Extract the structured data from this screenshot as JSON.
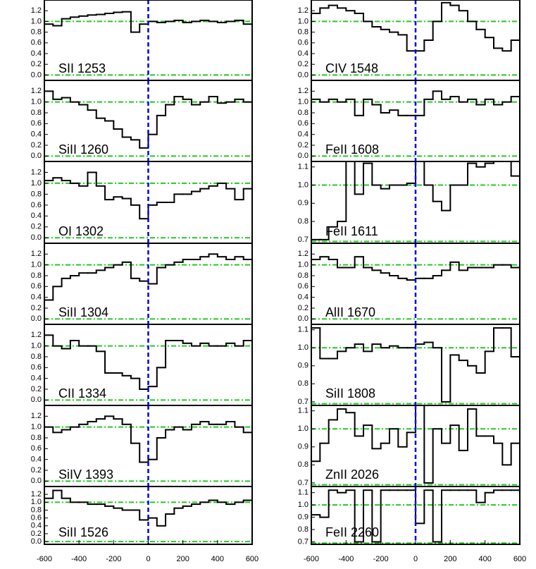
{
  "chart_data": [
    {
      "type": "line",
      "step": true,
      "label": "SII 1253",
      "x": [
        -600,
        -550,
        -500,
        -450,
        -400,
        -350,
        -300,
        -250,
        -200,
        -150,
        -100,
        -50,
        0,
        50,
        100,
        150,
        200,
        250,
        300,
        350,
        400,
        450,
        500,
        550
      ],
      "values": [
        0.95,
        0.92,
        1.05,
        1.08,
        1.1,
        1.12,
        1.13,
        1.15,
        1.17,
        1.18,
        0.8,
        0.95,
        1.0,
        0.98,
        1.0,
        1.02,
        0.98,
        1.0,
        1.02,
        1.0,
        0.98,
        1.0,
        1.02,
        0.95
      ],
      "xlim": [
        -600,
        600
      ],
      "ylim": [
        -0.1,
        1.4
      ],
      "yticks": [
        {
          "value": 0,
          "label": "0.0"
        },
        0.2,
        0.4,
        0.6,
        0.8,
        {
          "value": 1,
          "label": "1.0"
        },
        1.2
      ],
      "hlines": [
        0,
        1
      ],
      "vline": 0,
      "color": "#000000",
      "hline_color": "#22cc22",
      "vline_color": "#0000ee"
    },
    {
      "type": "line",
      "step": true,
      "label": "SiII 1260",
      "x": [
        -600,
        -550,
        -500,
        -450,
        -400,
        -350,
        -300,
        -250,
        -200,
        -150,
        -100,
        -50,
        0,
        50,
        100,
        150,
        200,
        250,
        300,
        350,
        400,
        450,
        500,
        550
      ],
      "values": [
        1.2,
        1.05,
        1.08,
        1.0,
        0.95,
        0.85,
        0.7,
        0.65,
        0.5,
        0.35,
        0.3,
        0.15,
        0.4,
        0.75,
        0.95,
        1.1,
        1.05,
        0.95,
        1.0,
        1.1,
        0.98,
        1.0,
        1.05,
        1.0
      ],
      "xlim": [
        -600,
        600
      ],
      "ylim": [
        -0.1,
        1.4
      ],
      "yticks": [
        {
          "value": 0,
          "label": "0.0"
        },
        0.2,
        0.4,
        0.6,
        0.8,
        {
          "value": 1,
          "label": "1.0"
        },
        1.2
      ],
      "hlines": [
        0,
        1
      ],
      "vline": 0,
      "color": "#000000",
      "hline_color": "#22cc22",
      "vline_color": "#0000ee"
    },
    {
      "type": "line",
      "step": true,
      "label": "OI 1302",
      "x": [
        -600,
        -550,
        -500,
        -450,
        -400,
        -350,
        -300,
        -250,
        -200,
        -150,
        -100,
        -50,
        0,
        50,
        100,
        150,
        200,
        250,
        300,
        350,
        400,
        450,
        500,
        550
      ],
      "values": [
        1.05,
        1.1,
        1.05,
        1.0,
        0.95,
        1.2,
        0.95,
        0.7,
        0.75,
        0.72,
        0.6,
        0.35,
        0.6,
        0.65,
        0.65,
        0.8,
        0.8,
        0.85,
        0.9,
        0.95,
        1.0,
        0.9,
        0.7,
        0.9
      ],
      "xlim": [
        -600,
        600
      ],
      "ylim": [
        -0.1,
        1.4
      ],
      "yticks": [
        {
          "value": 0,
          "label": "0.0"
        },
        0.2,
        0.4,
        0.6,
        0.8,
        {
          "value": 1,
          "label": "1.0"
        },
        1.2
      ],
      "hlines": [
        0,
        1
      ],
      "vline": 0,
      "color": "#000000",
      "hline_color": "#22cc22",
      "vline_color": "#0000ee"
    },
    {
      "type": "line",
      "step": true,
      "label": "SiII 1304",
      "x": [
        -600,
        -550,
        -500,
        -450,
        -400,
        -350,
        -300,
        -250,
        -200,
        -150,
        -100,
        -50,
        0,
        50,
        100,
        150,
        200,
        250,
        300,
        350,
        400,
        450,
        500,
        550
      ],
      "values": [
        0.35,
        0.6,
        0.75,
        0.8,
        0.85,
        0.85,
        0.9,
        0.95,
        1.0,
        1.05,
        0.75,
        0.7,
        0.65,
        0.95,
        1.0,
        1.05,
        1.1,
        1.1,
        1.15,
        1.2,
        1.15,
        1.1,
        1.15,
        1.1
      ],
      "xlim": [
        -600,
        600
      ],
      "ylim": [
        -0.1,
        1.4
      ],
      "yticks": [
        {
          "value": 0,
          "label": "0.0"
        },
        0.2,
        0.4,
        0.6,
        0.8,
        {
          "value": 1,
          "label": "1.0"
        },
        1.2
      ],
      "hlines": [
        0,
        1
      ],
      "vline": 0,
      "color": "#000000",
      "hline_color": "#22cc22",
      "vline_color": "#0000ee"
    },
    {
      "type": "line",
      "step": true,
      "label": "CII 1334",
      "x": [
        -600,
        -550,
        -500,
        -450,
        -400,
        -350,
        -300,
        -250,
        -200,
        -150,
        -100,
        -50,
        0,
        50,
        100,
        150,
        200,
        250,
        300,
        350,
        400,
        450,
        500,
        550
      ],
      "values": [
        1.2,
        1.0,
        0.95,
        1.1,
        1.0,
        1.0,
        0.9,
        0.5,
        0.5,
        0.45,
        0.4,
        0.2,
        0.25,
        0.6,
        1.1,
        1.1,
        1.05,
        1.0,
        1.05,
        1.0,
        1.0,
        1.05,
        1.0,
        1.1
      ],
      "xlim": [
        -600,
        600
      ],
      "ylim": [
        -0.1,
        1.4
      ],
      "yticks": [
        {
          "value": 0,
          "label": "0.0"
        },
        0.2,
        0.4,
        0.6,
        0.8,
        {
          "value": 1,
          "label": "1.0"
        },
        1.2
      ],
      "hlines": [
        0,
        1
      ],
      "vline": 0,
      "color": "#000000",
      "hline_color": "#22cc22",
      "vline_color": "#0000ee"
    },
    {
      "type": "line",
      "step": true,
      "label": "SiIV 1393",
      "x": [
        -600,
        -550,
        -500,
        -450,
        -400,
        -350,
        -300,
        -250,
        -200,
        -150,
        -100,
        -50,
        0,
        50,
        100,
        150,
        200,
        250,
        300,
        350,
        400,
        450,
        500,
        550
      ],
      "values": [
        1.0,
        0.9,
        0.95,
        1.0,
        1.05,
        1.1,
        1.15,
        1.2,
        1.15,
        1.05,
        0.7,
        0.35,
        0.4,
        0.8,
        0.95,
        1.0,
        0.95,
        1.05,
        1.1,
        1.05,
        1.05,
        1.1,
        1.0,
        0.9
      ],
      "xlim": [
        -600,
        600
      ],
      "ylim": [
        -0.1,
        1.4
      ],
      "yticks": [
        {
          "value": 0,
          "label": "0.0"
        },
        0.2,
        0.4,
        0.6,
        0.8,
        {
          "value": 1,
          "label": "1.0"
        },
        1.2
      ],
      "hlines": [
        0,
        1
      ],
      "vline": 0,
      "color": "#000000",
      "hline_color": "#22cc22",
      "vline_color": "#0000ee"
    },
    {
      "type": "line",
      "step": true,
      "label": "SiII 1526",
      "x": [
        -600,
        -550,
        -500,
        -450,
        -400,
        -350,
        -300,
        -250,
        -200,
        -150,
        -100,
        -50,
        0,
        50,
        100,
        150,
        200,
        250,
        300,
        350,
        400,
        450,
        500,
        550
      ],
      "values": [
        1.1,
        1.3,
        1.1,
        1.0,
        1.0,
        0.95,
        0.95,
        0.9,
        0.85,
        0.8,
        0.8,
        0.55,
        0.6,
        0.4,
        0.7,
        0.85,
        0.9,
        0.95,
        1.0,
        1.05,
        1.0,
        0.95,
        1.0,
        1.05
      ],
      "xlim": [
        -600,
        600
      ],
      "ylim": [
        -0.07,
        1.4
      ],
      "yticks": [
        {
          "value": 0,
          "label": "0.0"
        },
        0.2,
        0.4,
        0.6,
        0.8,
        {
          "value": 1,
          "label": "1.0"
        },
        1.2
      ],
      "xticks": [
        -600,
        -400,
        -200,
        0,
        200,
        400,
        600
      ],
      "hlines": [
        0,
        1
      ],
      "vline": 0,
      "color": "#000000",
      "hline_color": "#22cc22",
      "vline_color": "#0000ee"
    },
    {
      "type": "line",
      "step": true,
      "label": "CIV 1548",
      "x": [
        -600,
        -550,
        -500,
        -450,
        -400,
        -350,
        -300,
        -250,
        -200,
        -150,
        -100,
        -50,
        0,
        50,
        100,
        150,
        200,
        250,
        300,
        350,
        400,
        450,
        500,
        550
      ],
      "values": [
        1.15,
        1.25,
        1.3,
        1.25,
        1.2,
        1.15,
        1.0,
        0.9,
        0.85,
        0.8,
        0.75,
        0.45,
        0.45,
        0.65,
        1.0,
        1.35,
        1.3,
        1.2,
        1.0,
        0.85,
        0.7,
        0.5,
        0.45,
        0.65
      ],
      "xlim": [
        -600,
        600
      ],
      "ylim": [
        -0.1,
        1.4
      ],
      "yticks": [
        {
          "value": 0,
          "label": "0.0"
        },
        0.2,
        0.4,
        0.6,
        0.8,
        {
          "value": 1,
          "label": "1.0"
        },
        1.2
      ],
      "hlines": [
        0,
        1
      ],
      "vline": 0,
      "color": "#000000",
      "hline_color": "#22cc22",
      "vline_color": "#0000ee"
    },
    {
      "type": "line",
      "step": true,
      "label": "FeII 1608",
      "x": [
        -600,
        -550,
        -500,
        -450,
        -400,
        -350,
        -300,
        -250,
        -200,
        -150,
        -100,
        -50,
        0,
        50,
        100,
        150,
        200,
        250,
        300,
        350,
        400,
        450,
        500,
        550
      ],
      "values": [
        1.05,
        1.0,
        1.05,
        1.0,
        1.05,
        0.75,
        1.05,
        0.95,
        0.8,
        0.85,
        0.75,
        0.75,
        0.75,
        1.05,
        1.2,
        1.05,
        1.1,
        1.0,
        1.05,
        0.95,
        1.05,
        0.95,
        1.0,
        1.1
      ],
      "xlim": [
        -600,
        600
      ],
      "ylim": [
        -0.1,
        1.4
      ],
      "yticks": [
        {
          "value": 0,
          "label": "0.0"
        },
        0.2,
        0.4,
        0.6,
        0.8,
        {
          "value": 1,
          "label": "1.0"
        },
        1.2
      ],
      "hlines": [
        0,
        1
      ],
      "vline": 0,
      "color": "#000000",
      "hline_color": "#22cc22",
      "vline_color": "#0000ee"
    },
    {
      "type": "line",
      "step": true,
      "label": "FeII 1611",
      "x": [
        -600,
        -550,
        -500,
        -450,
        -400,
        -350,
        -300,
        -250,
        -200,
        -150,
        -100,
        -50,
        0,
        50,
        100,
        150,
        200,
        250,
        300,
        350,
        400,
        450,
        500,
        550
      ],
      "values": [
        0.7,
        0.7,
        0.77,
        0.8,
        1.13,
        0.95,
        1.12,
        1.0,
        0.98,
        1.0,
        1.0,
        1.01,
        1.13,
        1.0,
        0.91,
        0.86,
        1.0,
        1.0,
        1.12,
        1.1,
        1.12,
        1.13,
        1.13,
        1.05
      ],
      "xlim": [
        -600,
        600
      ],
      "ylim": [
        0.68,
        1.13
      ],
      "yticks": [
        0.7,
        0.8,
        0.9,
        {
          "value": 1,
          "label": "1.0"
        },
        1.1
      ],
      "hlines": [
        0.69,
        1
      ],
      "vline": 0,
      "color": "#000000",
      "hline_color": "#22cc22",
      "vline_color": "#0000ee"
    },
    {
      "type": "line",
      "step": true,
      "label": "AlII 1670",
      "x": [
        -600,
        -550,
        -500,
        -450,
        -400,
        -350,
        -300,
        -250,
        -200,
        -150,
        -100,
        -50,
        0,
        50,
        100,
        150,
        200,
        250,
        300,
        350,
        400,
        450,
        500,
        550
      ],
      "values": [
        1.1,
        1.15,
        1.1,
        0.95,
        0.95,
        1.15,
        0.95,
        0.9,
        0.85,
        0.8,
        0.75,
        0.72,
        0.75,
        0.75,
        0.8,
        0.9,
        1.05,
        0.9,
        0.95,
        0.95,
        0.95,
        1.0,
        1.0,
        0.95
      ],
      "xlim": [
        -600,
        600
      ],
      "ylim": [
        -0.1,
        1.4
      ],
      "yticks": [
        {
          "value": 0,
          "label": "0.0"
        },
        0.2,
        0.4,
        0.6,
        0.8,
        {
          "value": 1,
          "label": "1.0"
        },
        1.2
      ],
      "hlines": [
        0,
        1
      ],
      "vline": 0,
      "color": "#000000",
      "hline_color": "#22cc22",
      "vline_color": "#0000ee"
    },
    {
      "type": "line",
      "step": true,
      "label": "SiII 1808",
      "x": [
        -600,
        -550,
        -500,
        -450,
        -400,
        -350,
        -300,
        -250,
        -200,
        -150,
        -100,
        -50,
        0,
        50,
        100,
        150,
        200,
        250,
        300,
        350,
        400,
        450,
        500,
        550
      ],
      "values": [
        1.11,
        0.94,
        0.94,
        0.98,
        1.0,
        1.02,
        0.98,
        1.02,
        1.0,
        1.01,
        1.0,
        1.0,
        1.02,
        1.03,
        1.0,
        0.7,
        0.96,
        0.93,
        0.9,
        0.86,
        0.98,
        1.11,
        1.11,
        0.95
      ],
      "xlim": [
        -600,
        600
      ],
      "ylim": [
        0.68,
        1.13
      ],
      "yticks": [
        0.7,
        0.8,
        0.9,
        {
          "value": 1,
          "label": "1.0"
        },
        1.1
      ],
      "hlines": [
        0.69,
        1
      ],
      "vline": 0,
      "color": "#000000",
      "hline_color": "#22cc22",
      "vline_color": "#0000ee"
    },
    {
      "type": "line",
      "step": true,
      "label": "ZnII 2026",
      "x": [
        -600,
        -550,
        -500,
        -450,
        -400,
        -350,
        -300,
        -250,
        -200,
        -150,
        -100,
        -50,
        0,
        50,
        100,
        150,
        200,
        250,
        300,
        350,
        400,
        450,
        500,
        550
      ],
      "values": [
        0.82,
        0.92,
        1.05,
        1.11,
        1.09,
        0.96,
        1.02,
        0.89,
        0.92,
        1.0,
        0.9,
        0.98,
        1.13,
        0.7,
        1.0,
        0.92,
        1.02,
        0.88,
        1.11,
        0.96,
        0.96,
        0.92,
        0.8,
        0.92
      ],
      "xlim": [
        -600,
        600
      ],
      "ylim": [
        0.68,
        1.13
      ],
      "yticks": [
        0.7,
        0.8,
        0.9,
        {
          "value": 1,
          "label": "1.0"
        },
        1.1
      ],
      "hlines": [
        0.69,
        1
      ],
      "vline": 0,
      "color": "#000000",
      "hline_color": "#22cc22",
      "vline_color": "#0000ee"
    },
    {
      "type": "line",
      "step": true,
      "label": "FeII 2260",
      "x": [
        -600,
        -550,
        -500,
        -450,
        -400,
        -350,
        -300,
        -250,
        -200,
        -150,
        -100,
        -50,
        0,
        50,
        100,
        150,
        200,
        250,
        300,
        350,
        400,
        450,
        500,
        550
      ],
      "values": [
        0.92,
        0.9,
        1.12,
        1.1,
        1.12,
        0.7,
        1.12,
        0.7,
        1.12,
        1.12,
        1.12,
        1.12,
        0.85,
        1.12,
        0.7,
        1.12,
        1.12,
        1.12,
        1.12,
        1.02,
        1.1,
        1.12,
        1.12,
        1.12
      ],
      "xlim": [
        -600,
        600
      ],
      "ylim": [
        0.68,
        1.15
      ],
      "yticks": [
        0.7,
        0.8,
        0.9,
        {
          "value": 1,
          "label": "1.0"
        },
        1.1
      ],
      "xticks": [
        -600,
        -400,
        -200,
        0,
        200,
        400,
        600
      ],
      "hlines": [
        0.69,
        1
      ],
      "vline": 0,
      "color": "#000000",
      "hline_color": "#22cc22",
      "vline_color": "#0000ee"
    }
  ]
}
